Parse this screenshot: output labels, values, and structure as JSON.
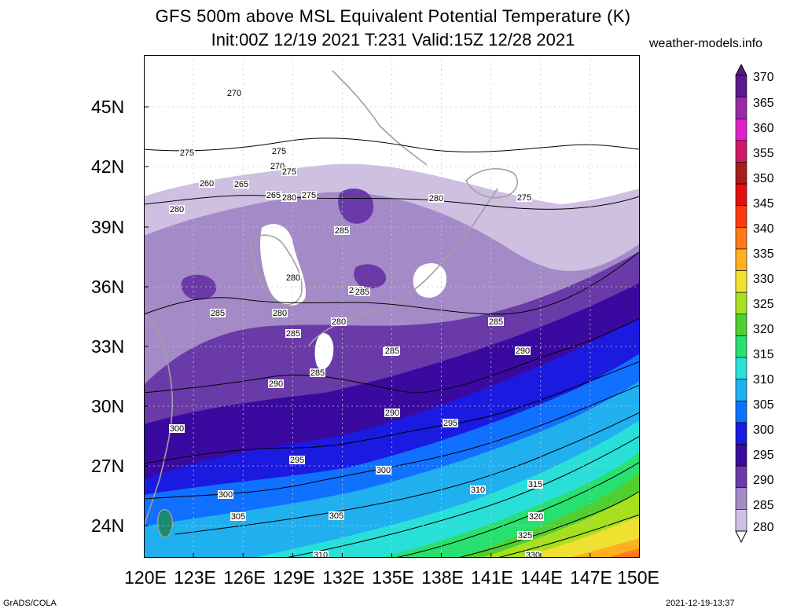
{
  "title": {
    "line1": "GFS 500m above MSL Equivalent Potential Temperature (K)",
    "line2": "Init:00Z 12/19 2021 T:231 Valid:15Z 12/28 2021"
  },
  "site": "weather-models.info",
  "axes": {
    "lat_ticks": [
      "45N",
      "42N",
      "39N",
      "36N",
      "33N",
      "30N",
      "27N",
      "24N"
    ],
    "lon_ticks": [
      "120E",
      "123E",
      "126E",
      "129E",
      "132E",
      "135E",
      "138E",
      "141E",
      "144E",
      "147E",
      "150E"
    ]
  },
  "colorbar": {
    "levels": [
      "370",
      "365",
      "360",
      "355",
      "350",
      "345",
      "340",
      "335",
      "330",
      "325",
      "320",
      "315",
      "310",
      "305",
      "300",
      "295",
      "290",
      "285",
      "280"
    ],
    "colors": [
      "#5a1a8a",
      "#9a2aa8",
      "#e020c8",
      "#d01868",
      "#a81c1c",
      "#e01010",
      "#ff3a10",
      "#ff7a18",
      "#ffb020",
      "#f0e030",
      "#a8e020",
      "#50d030",
      "#28e070",
      "#28e0d8",
      "#20b0f0",
      "#1070ff",
      "#1a1ae0",
      "#3a0aa0",
      "#6a3aa8",
      "#a58ac8",
      "#cfc0e2"
    ]
  },
  "contour_labels": [
    "270",
    "275",
    "260",
    "265",
    "275",
    "270",
    "275",
    "265",
    "275",
    "280",
    "280",
    "280",
    "275",
    "280",
    "285",
    "285",
    "280",
    "285",
    "280",
    "285",
    "285",
    "285",
    "290",
    "290",
    "285",
    "280",
    "285",
    "290",
    "295",
    "300",
    "295",
    "300",
    "305",
    "310",
    "315",
    "320",
    "325",
    "330",
    "300",
    "305",
    "310"
  ],
  "footer": {
    "left": "GrADS/COLA",
    "right": "2021-12-19-13:37"
  }
}
